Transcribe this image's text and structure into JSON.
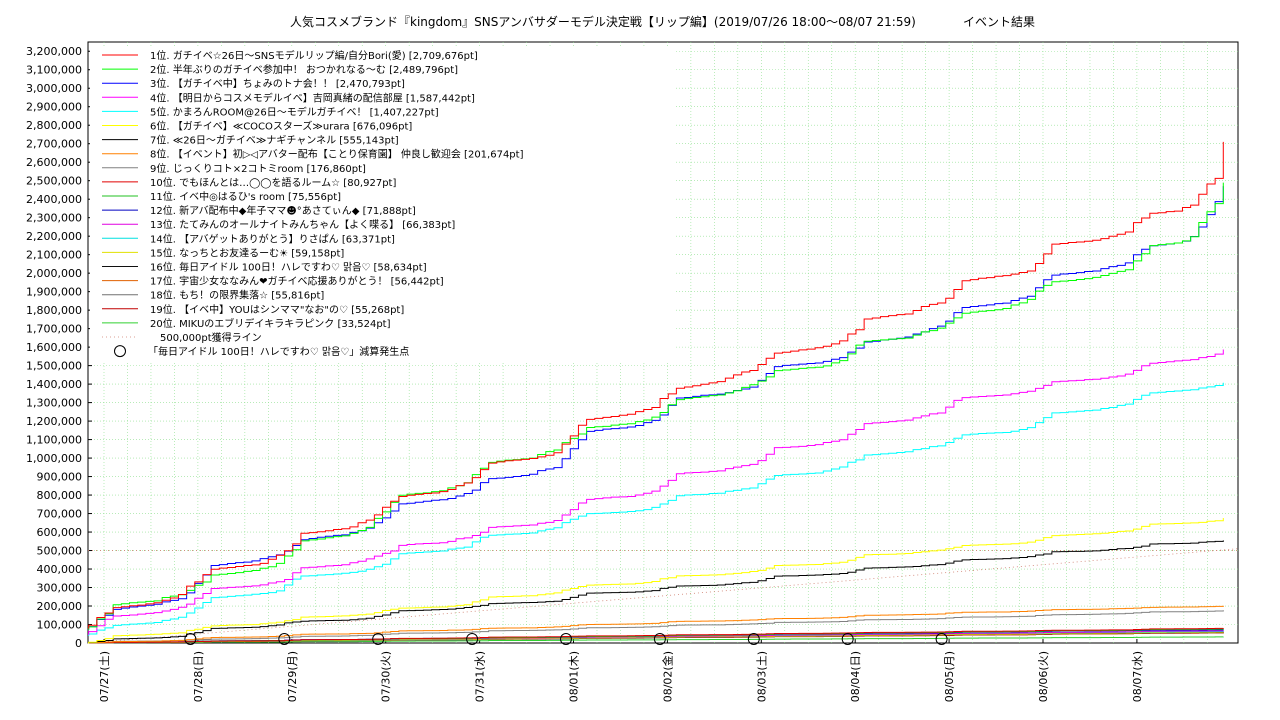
{
  "chart_data": {
    "type": "line",
    "title": "人気コスメブランド『kingdom』SNSアンバサダーモデル決定戦【リップ編】(2019/07/26 18:00〜08/07 21:59)",
    "title_suffix": "イベント結果",
    "y_tick_labels": [
      "0",
      "100,000",
      "200,000",
      "300,000",
      "400,000",
      "500,000",
      "600,000",
      "700,000",
      "800,000",
      "900,000",
      "1,000,000",
      "1,100,000",
      "1,200,000",
      "1,300,000",
      "1,400,000",
      "1,500,000",
      "1,600,000",
      "1,700,000",
      "1,800,000",
      "1,900,000",
      "2,000,000",
      "2,100,000",
      "2,200,000",
      "2,300,000",
      "2,400,000",
      "2,500,000",
      "2,600,000",
      "2,700,000",
      "2,800,000",
      "2,900,000",
      "3,000,000",
      "3,100,000",
      "3,200,000"
    ],
    "x_tick_labels": [
      "07/27(土)",
      "07/28(日)",
      "07/29(月)",
      "07/30(火)",
      "07/31(水)",
      "08/01(木)",
      "08/02(金)",
      "08/03(土)",
      "08/04(日)",
      "08/05(月)",
      "08/06(火)",
      "08/07(水)"
    ],
    "ylim": [
      0,
      3250000
    ],
    "x_start": "2019-07-26 18:00",
    "x_end": "2019-08-07 21:59",
    "grid": true,
    "legend_position": "top-left",
    "series": [
      {
        "label": "1位. ガチイベ☆26日〜SNSモデルリップ編/自分Bori(愛) [2,709,676pt]",
        "color": "#ff0000",
        "final": 2709676
      },
      {
        "label": "2位. 半年ぶりのガチイベ参加中！ おつかれなる〜む [2,489,796pt]",
        "color": "#00ff00",
        "final": 2489796
      },
      {
        "label": "3位. 【ガチイベ中】ちょみのトナ会！！ [2,470,793pt]",
        "color": "#0000ff",
        "final": 2470793
      },
      {
        "label": "4位. 【明日からコスメモデルイベ】吉岡真緒の配信部屋 [1,587,442pt]",
        "color": "#ff00ff",
        "final": 1587442
      },
      {
        "label": "5位. かまろんROOM@26日〜モデルガチイベ！ [1,407,227pt]",
        "color": "#00ffff",
        "final": 1407227
      },
      {
        "label": "6位. 【ガチイベ】≪COCOスターズ≫urara [676,096pt]",
        "color": "#ffff00",
        "final": 676096
      },
      {
        "label": "7位. ≪26日〜ガチイベ≫ナギチャンネル [555,143pt]",
        "color": "#000000",
        "final": 555143
      },
      {
        "label": "8位. 【イベント】初▷◁アバター配布【ことり保育園】 仲良し歓迎会 [201,674pt]",
        "color": "#ff8000",
        "final": 201674
      },
      {
        "label": "9位. じっくりコト×2コトミroom [176,860pt]",
        "color": "#808080",
        "final": 176860
      },
      {
        "label": "10位. でもほんとは…◯◯を語るルーム☆ [80,927pt]",
        "color": "#e00000",
        "final": 80927
      },
      {
        "label": "11位. イベ中◎はるひ's room [75,556pt]",
        "color": "#20c020",
        "final": 75556
      },
      {
        "label": "12位. 新アバ配布中◆年子ママ☻°あさてぃん◆ [71,888pt]",
        "color": "#0000c0",
        "final": 71888
      },
      {
        "label": "13位. たてみんのオールナイトみんちゃん【よく喋る】 [66,383pt]",
        "color": "#e000e0",
        "final": 66383
      },
      {
        "label": "14位. 【アバゲットありがとう】りさぱん [63,371pt]",
        "color": "#00e0e0",
        "final": 63371
      },
      {
        "label": "15位. なっちとお友達るーむ☀ [59,158pt]",
        "color": "#e0e000",
        "final": 59158
      },
      {
        "label": "16位. 毎日アイドル 100日！ハレですわ♡ 맑음♡ [58,634pt]",
        "color": "#101010",
        "final": 58634
      },
      {
        "label": "17位. 宇宙少女ななみん❤ガチイベ応援ありがとう！ [56,442pt]",
        "color": "#e06000",
        "final": 56442
      },
      {
        "label": "18位. もち！の限界集落☆ [55,816pt]",
        "color": "#707070",
        "final": 55816
      },
      {
        "label": "19位. 【イベ中】YOUはシンママ\"なお\"の♡ [55,268pt]",
        "color": "#c00000",
        "final": 55268
      },
      {
        "label": "20位. MIKUのエブリデイキラキラピンク [33,524pt]",
        "color": "#30d030",
        "final": 33524
      }
    ],
    "reference_line": {
      "label": "500,000pt獲得ライン",
      "value": 500000,
      "color": "#d08070"
    },
    "marker_legend": "「毎日アイドル 100日！ハレですわ♡ 맑음♡」減算発生点",
    "marker_days": [
      1.17,
      2.17,
      3.17,
      4.17,
      5.17,
      6.17,
      7.17,
      8.17,
      9.17
    ]
  }
}
